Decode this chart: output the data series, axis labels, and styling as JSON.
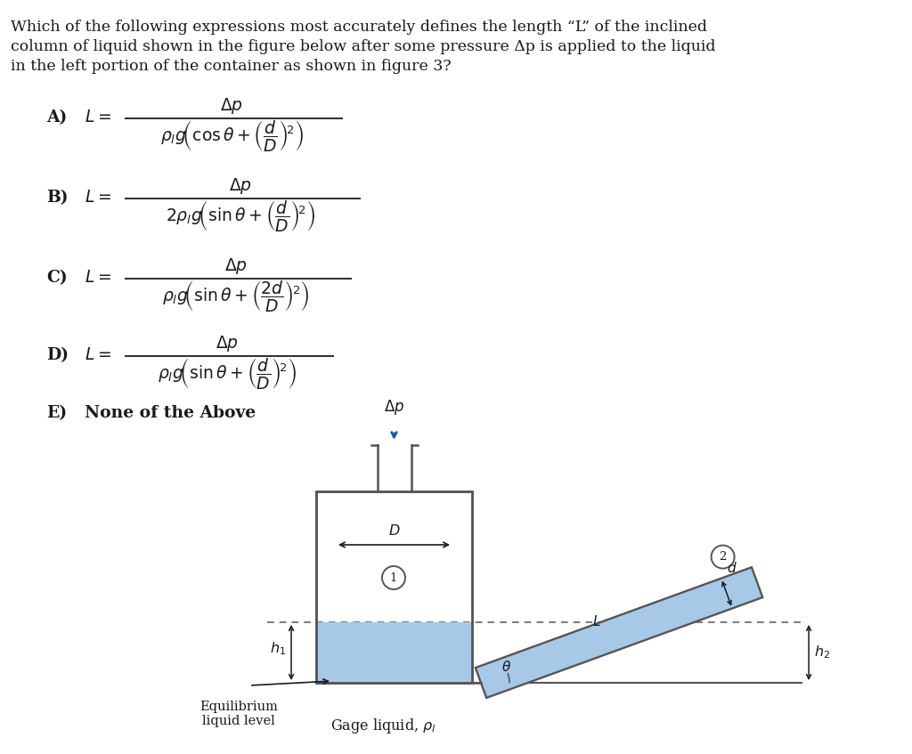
{
  "bg_color": "#ffffff",
  "text_color": "#1a1a1a",
  "liquid_color": "#a8c8e8",
  "diagram_line_color": "#444444",
  "arrow_color": "#2255aa",
  "title_lines": [
    "Which of the following expressions most accurately defines the length “L” of the inclined",
    "column of liquid shown in the figure below after some pressure Δp is applied to the liquid",
    "in the left portion of the container as shown in figure 3?"
  ],
  "option_A_label": "A)",
  "option_A_lhs": "L =",
  "option_A_num": "\\Delta p",
  "option_A_den": "\\rho_{l}g\\!\\left(\\cos\\theta + \\left(\\dfrac{d}{D}\\right)^{\\!2}\\right)",
  "option_B_label": "B)",
  "option_B_lhs": "L =",
  "option_B_num": "\\Delta p",
  "option_B_den": "2\\rho_{l}g\\!\\left(\\sin\\theta + \\left(\\dfrac{d}{D}\\right)^{\\!2}\\right)",
  "option_C_label": "C)",
  "option_C_lhs": "L =",
  "option_C_num": "\\Delta p",
  "option_C_den": "\\rho_{l}g\\!\\left(\\sin\\theta + \\left(\\dfrac{2d}{D}\\right)^{\\!2}\\right)",
  "option_D_label": "D)",
  "option_D_lhs": "L =",
  "option_D_num": "\\Delta p",
  "option_D_den": "\\rho_{l}g\\!\\left(\\sin\\theta + \\left(\\dfrac{d}{D}\\right)^{\\!2}\\right)",
  "option_E": "E)   None of the Above"
}
